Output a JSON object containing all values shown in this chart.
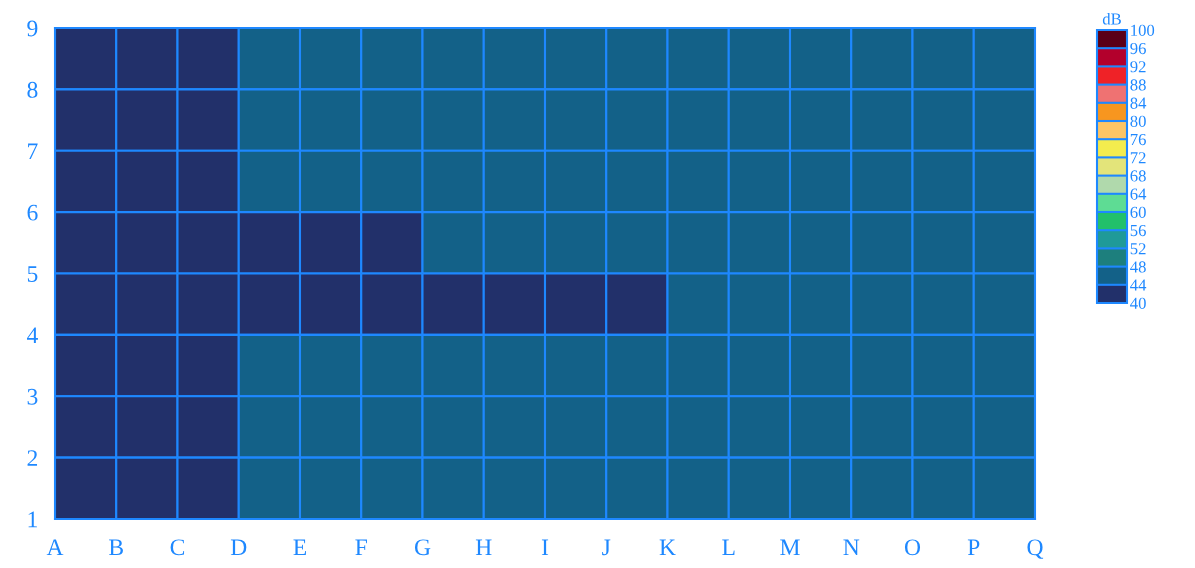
{
  "chart_data": {
    "type": "heatmap",
    "clabel": "dB",
    "cells": [
      [
        42,
        42,
        42,
        46,
        46,
        46,
        46,
        46,
        46,
        46,
        46,
        46,
        46,
        46,
        46,
        46
      ],
      [
        42,
        42,
        42,
        46,
        46,
        46,
        46,
        46,
        46,
        46,
        46,
        46,
        46,
        46,
        46,
        46
      ],
      [
        42,
        42,
        42,
        46,
        46,
        46,
        46,
        46,
        46,
        46,
        46,
        46,
        46,
        46,
        46,
        46
      ],
      [
        42,
        42,
        42,
        42,
        42,
        42,
        46,
        46,
        46,
        46,
        46,
        46,
        46,
        46,
        46,
        46
      ],
      [
        42,
        42,
        42,
        42,
        42,
        42,
        42,
        42,
        42,
        42,
        46,
        46,
        46,
        46,
        46,
        46
      ],
      [
        42,
        42,
        42,
        46,
        46,
        46,
        46,
        46,
        46,
        46,
        46,
        46,
        46,
        46,
        46,
        46
      ],
      [
        42,
        42,
        42,
        46,
        46,
        46,
        46,
        46,
        46,
        46,
        46,
        46,
        46,
        46,
        46,
        46
      ],
      [
        42,
        42,
        42,
        46,
        46,
        46,
        46,
        46,
        46,
        46,
        46,
        46,
        46,
        46,
        46,
        46
      ]
    ],
    "categories": [
      null,
      null,
      null,
      null,
      null,
      null,
      null,
      null,
      null,
      null,
      null,
      null,
      null,
      null,
      null,
      null
    ],
    "annotations": [
      "A",
      "B",
      "C",
      "D",
      "E",
      "F",
      "G",
      "H",
      "I",
      "J",
      "K",
      "L",
      "M",
      "N",
      "O",
      "P",
      "Q"
    ],
    "ylim": [
      1,
      9
    ],
    "yticks": [
      1,
      2,
      3,
      4,
      5,
      6,
      7,
      8,
      9
    ],
    "clim": [
      40,
      100
    ],
    "cticks": [
      40,
      44,
      48,
      52,
      56,
      60,
      64,
      68,
      72,
      76,
      80,
      84,
      88,
      92,
      96,
      100
    ]
  }
}
